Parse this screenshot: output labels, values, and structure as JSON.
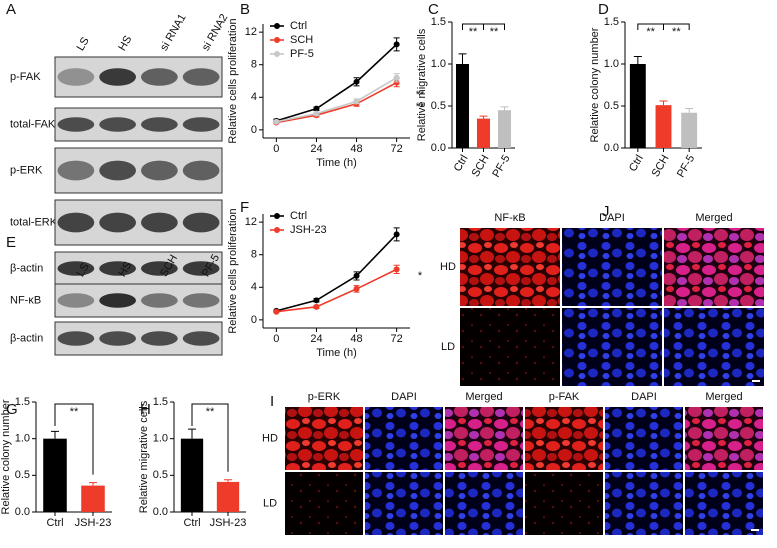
{
  "blots": [
    {
      "panel": "A",
      "lanes": [
        "LS",
        "HS",
        "si RNA1",
        "si RNA2"
      ],
      "rows": [
        "p-FAK",
        "total-FAK",
        "p-ERK",
        "total-ERK",
        "β-actin"
      ]
    },
    {
      "panel": "E",
      "lanes": [
        "LS",
        "HS",
        "SCH",
        "PF-5"
      ],
      "rows": [
        "NF-κB",
        "β-actin"
      ]
    }
  ],
  "micrographs": [
    {
      "panel": "J",
      "columns": [
        "NF-κB",
        "DAPI",
        "Merged"
      ],
      "rows": [
        "HD",
        "LD"
      ]
    },
    {
      "panel": "I",
      "columns": [
        "p-ERK",
        "DAPI",
        "Merged",
        "p-FAK",
        "DAPI",
        "Merged"
      ],
      "rows": [
        "HD",
        "LD"
      ]
    }
  ],
  "chart_data": [
    {
      "panel": "B",
      "type": "line",
      "ylabel": "Relative cells proliferation",
      "xlabel": "Time (h)",
      "x": [
        0,
        24,
        48,
        72
      ],
      "xlim": [
        -8,
        80
      ],
      "xticks": [
        0,
        24,
        48,
        72
      ],
      "ylim": [
        -1,
        13
      ],
      "yticks": [
        0,
        4,
        8,
        12
      ],
      "series": [
        {
          "name": "Ctrl",
          "color": "#000000",
          "values": [
            1.1,
            2.6,
            5.9,
            10.5
          ],
          "errors": [
            0.2,
            0.2,
            0.5,
            0.8
          ]
        },
        {
          "name": "SCH",
          "color": "#ee3b2a",
          "values": [
            0.9,
            1.8,
            3.2,
            5.8
          ],
          "errors": [
            0.1,
            0.2,
            0.3,
            0.5
          ]
        },
        {
          "name": "PF-5",
          "color": "#c8c8c8",
          "values": [
            1.0,
            2.0,
            3.5,
            6.4
          ],
          "errors": [
            0.1,
            0.2,
            0.3,
            0.5
          ]
        }
      ],
      "annotations": [
        "**",
        "**"
      ]
    },
    {
      "panel": "C",
      "type": "bar",
      "ylabel": "Relative migrative cells",
      "categories": [
        "Ctrl",
        "SCH",
        "PF-5"
      ],
      "values": [
        1.0,
        0.35,
        0.45
      ],
      "errors": [
        0.12,
        0.03,
        0.04
      ],
      "colors": [
        "#000000",
        "#ee3b2a",
        "#bfbfbf"
      ],
      "ylim": [
        0,
        1.5
      ],
      "yticks": [
        {
          "value": 0,
          "label": "0.0"
        },
        0.5,
        {
          "value": 1,
          "label": "1.0"
        },
        1.5
      ],
      "annotations": [
        "**",
        "**"
      ]
    },
    {
      "panel": "D",
      "type": "bar",
      "ylabel": "Relative colony number",
      "categories": [
        "Ctrl",
        "SCH",
        "PF-5"
      ],
      "values": [
        1.0,
        0.51,
        0.42
      ],
      "errors": [
        0.09,
        0.05,
        0.05
      ],
      "colors": [
        "#000000",
        "#ee3b2a",
        "#bfbfbf"
      ],
      "ylim": [
        0,
        1.5
      ],
      "yticks": [
        {
          "value": 0,
          "label": "0.0"
        },
        0.5,
        {
          "value": 1,
          "label": "1.0"
        },
        1.5
      ],
      "annotations": [
        "**",
        "**"
      ]
    },
    {
      "panel": "F",
      "type": "line",
      "ylabel": "Relative cells proliferation",
      "xlabel": "Time (h)",
      "x": [
        0,
        24,
        48,
        72
      ],
      "xlim": [
        -8,
        80
      ],
      "xticks": [
        0,
        24,
        48,
        72
      ],
      "ylim": [
        -1,
        13
      ],
      "yticks": [
        0,
        4,
        8,
        12
      ],
      "series": [
        {
          "name": "Ctrl",
          "color": "#000000",
          "values": [
            1.1,
            2.4,
            5.4,
            10.5
          ],
          "errors": [
            0.1,
            0.2,
            0.5,
            0.8
          ]
        },
        {
          "name": "JSH-23",
          "color": "#ee3b2a",
          "values": [
            1.0,
            1.6,
            3.8,
            6.2
          ],
          "errors": [
            0.1,
            0.2,
            0.4,
            0.5
          ]
        }
      ],
      "annotations": [
        "*"
      ]
    },
    {
      "panel": "G",
      "type": "bar",
      "ylabel": "Relative colony number",
      "categories": [
        "Ctrl",
        "JSH-23"
      ],
      "values": [
        1.0,
        0.36
      ],
      "errors": [
        0.1,
        0.04
      ],
      "colors": [
        "#000000",
        "#ee3b2a"
      ],
      "ylim": [
        0,
        1.5
      ],
      "yticks": [
        {
          "value": 0,
          "label": "0.0"
        },
        0.5,
        {
          "value": 1,
          "label": "1.0"
        },
        1.5
      ],
      "annotations": [
        "**"
      ]
    },
    {
      "panel": "H",
      "type": "bar",
      "ylabel": "Relative migrative cells",
      "categories": [
        "Ctrl",
        "JSH-23"
      ],
      "values": [
        1.0,
        0.41
      ],
      "errors": [
        0.13,
        0.03
      ],
      "colors": [
        "#000000",
        "#ee3b2a"
      ],
      "ylim": [
        0,
        1.5
      ],
      "yticks": [
        {
          "value": 0,
          "label": "0.0"
        },
        0.5,
        {
          "value": 1,
          "label": "1.0"
        },
        1.5
      ],
      "annotations": [
        "**"
      ]
    }
  ]
}
